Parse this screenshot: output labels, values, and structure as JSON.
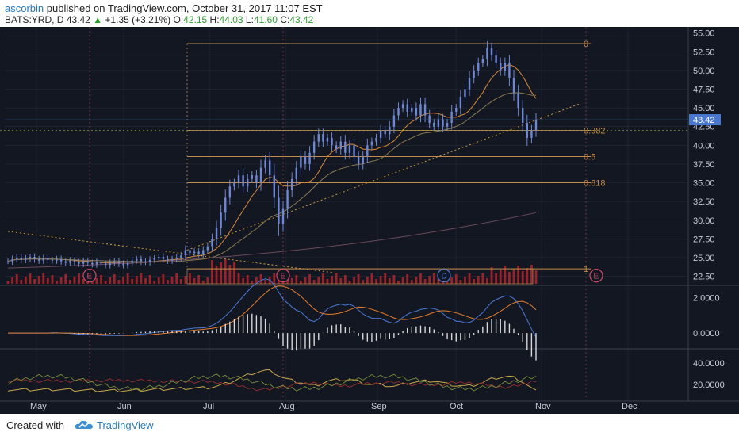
{
  "header": {
    "author": "ascorbin",
    "published_text": "published on TradingView.com, October 31, 2017 11:07 EST",
    "symbol": "BATS:YRD, D",
    "last": "43.42",
    "change": "+1.35 (+3.21%)",
    "open_label": "O:",
    "open": "42.15",
    "high_label": "H:",
    "high": "44.03",
    "low_label": "L:",
    "low": "41.60",
    "close_label": "C:",
    "close": "43.42"
  },
  "footer": {
    "created_label": "Created with",
    "brand": "TradingView"
  },
  "colors": {
    "background": "#131722",
    "candle": "#6f88d6",
    "grid": "#2a2f3d",
    "fib": "#c08a4b",
    "volume": "#b3242a",
    "price_tag": "#4a78d1",
    "macd": "#4a7bd8",
    "signal": "#e07b2d",
    "rsi1": "#c8a84a",
    "rsi2": "#8b2c2c"
  },
  "chart_data": {
    "type": "candlestick",
    "price_axis": {
      "ticks": [
        "55.00",
        "52.50",
        "50.00",
        "47.50",
        "45.00",
        "42.50",
        "40.00",
        "37.50",
        "35.00",
        "32.50",
        "30.00",
        "27.50",
        "25.00",
        "22.50"
      ],
      "ylim": [
        21.5,
        55.5
      ]
    },
    "current_price_tag": "43.42",
    "x_axis": {
      "ticks": [
        "May",
        "Jun",
        "Jul",
        "Aug",
        "Sep",
        "Oct",
        "Nov",
        "Dec"
      ]
    },
    "fib_levels": [
      {
        "label": "0",
        "price": 53.6
      },
      {
        "label": "0.382",
        "price": 42.0
      },
      {
        "label": "0.5",
        "price": 38.5
      },
      {
        "label": "0.618",
        "price": 35.0
      },
      {
        "label": "1",
        "price": 23.5
      }
    ],
    "earnings_markers": [
      "E",
      "E",
      "D",
      "E"
    ],
    "macd_axis": {
      "ticks": [
        "2.0000",
        "0.0000"
      ]
    },
    "rsi_axis": {
      "ticks": [
        "40.0000",
        "20.0000"
      ]
    },
    "close_series": [
      24.5,
      24.8,
      25.0,
      24.7,
      24.9,
      25.1,
      24.8,
      24.6,
      24.9,
      24.7,
      24.6,
      24.8,
      24.5,
      24.3,
      24.6,
      24.4,
      24.2,
      24.5,
      24.3,
      24.1,
      24.4,
      24.2,
      24.0,
      24.3,
      24.5,
      24.2,
      24.0,
      24.3,
      24.6,
      24.8,
      24.5,
      24.4,
      24.7,
      24.9,
      25.1,
      24.8,
      24.6,
      24.8,
      25.0,
      25.3,
      26.0,
      25.6,
      25.8,
      25.5,
      26.0,
      26.5,
      27.5,
      29.0,
      31.0,
      33.0,
      34.5,
      35.0,
      36.0,
      34.5,
      35.5,
      36.0,
      35.0,
      37.0,
      38.0,
      36.0,
      33.0,
      29.5,
      31.5,
      34.0,
      35.5,
      37.0,
      38.5,
      37.5,
      39.0,
      40.5,
      41.5,
      40.5,
      41.0,
      40.0,
      39.5,
      40.5,
      39.0,
      40.0,
      38.5,
      37.5,
      38.5,
      40.0,
      40.5,
      41.0,
      42.0,
      41.5,
      42.5,
      44.0,
      45.0,
      45.5,
      44.5,
      45.0,
      44.0,
      45.5,
      44.0,
      43.0,
      42.5,
      43.5,
      42.5,
      43.0,
      44.5,
      45.0,
      46.5,
      47.5,
      49.0,
      50.0,
      51.0,
      51.5,
      53.0,
      52.0,
      51.0,
      50.0,
      51.0,
      49.0,
      47.0,
      45.0,
      43.0,
      41.0,
      42.0,
      43.42
    ]
  }
}
